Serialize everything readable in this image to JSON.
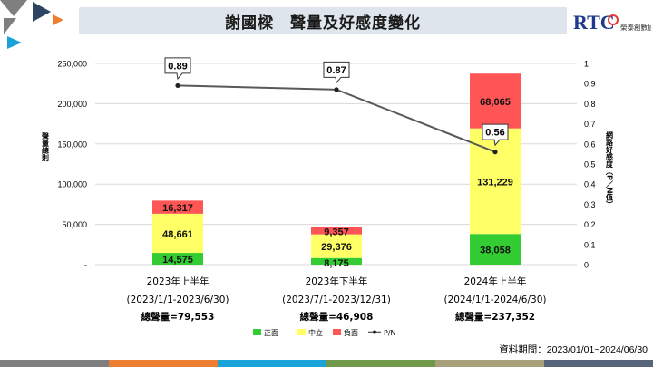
{
  "title": "謝國樑　聲量及好感度變化",
  "logo": {
    "brand": "RTC",
    "tagline": "榮泰創數據"
  },
  "source_text": "資料期間：2023/01/01~2024/06/30",
  "colors": {
    "positive": "#33cc33",
    "neutral": "#ffff66",
    "negative": "#ff5555",
    "line": "#595959",
    "title_bg": "#dfe5ec",
    "bottom_bar": [
      "#7f7f7f",
      "#ed7d31",
      "#1aa3d9",
      "#70994c",
      "#a89f7b",
      "#56657a"
    ]
  },
  "chart_data": {
    "type": "bar",
    "stacked": true,
    "categories": [
      "2023年上半年",
      "2023年下半年",
      "2024年上半年"
    ],
    "category_sublabels": [
      "(2023/1/1-2023/6/30)",
      "(2023/7/1-2023/12/31)",
      "(2024/1/1-2024/6/30)"
    ],
    "category_totals": [
      "總聲量=79,553",
      "總聲量=46,908",
      "總聲量=237,352"
    ],
    "series": [
      {
        "name": "正面",
        "values": [
          14575,
          8175,
          38058
        ],
        "labels": [
          "14,575",
          "8,175",
          "38,058"
        ]
      },
      {
        "name": "中立",
        "values": [
          48661,
          29376,
          131229
        ],
        "labels": [
          "48,661",
          "29,376",
          "131,229"
        ]
      },
      {
        "name": "負面",
        "values": [
          16317,
          9357,
          68065
        ],
        "labels": [
          "16,317",
          "9,357",
          "68,065"
        ]
      }
    ],
    "line_series": {
      "name": "P/N",
      "values": [
        0.89,
        0.87,
        0.56
      ],
      "labels": [
        "0.89",
        "0.87",
        "0.56"
      ]
    },
    "ylabel": "聲量總則",
    "y2label": "網路好感度（P／N值）",
    "ylim": [
      0,
      250000
    ],
    "yticks": [
      "-",
      "50,000",
      "100,000",
      "150,000",
      "200,000",
      "250,000"
    ],
    "y2lim": [
      0,
      1
    ],
    "y2ticks": [
      "0",
      "0.1",
      "0.2",
      "0.3",
      "0.4",
      "0.5",
      "0.6",
      "0.7",
      "0.8",
      "0.9",
      "1"
    ],
    "legend": [
      "正面",
      "中立",
      "負面",
      "P/N"
    ],
    "legend_position": "bottom",
    "grid": true
  }
}
